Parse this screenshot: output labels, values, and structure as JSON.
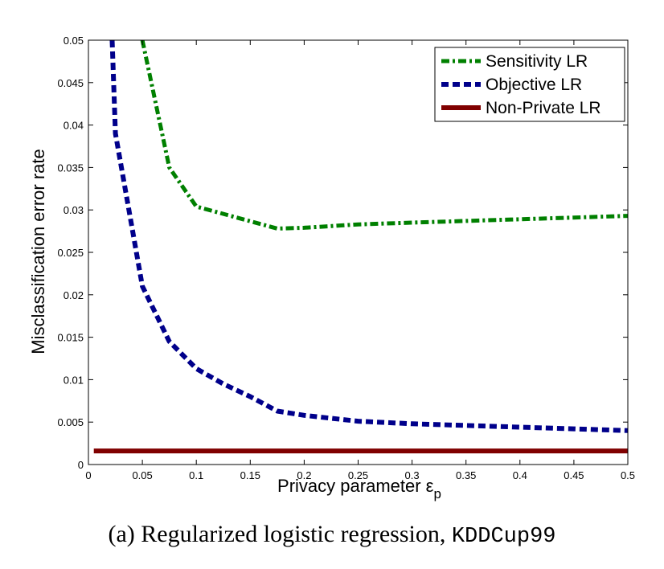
{
  "chart_data": {
    "type": "line",
    "xlabel": "Privacy parameter ε",
    "xlabel_subscript": "p",
    "ylabel": "Misclassification error rate",
    "xlim": [
      0,
      0.5
    ],
    "ylim": [
      0,
      0.05
    ],
    "x_ticks": [
      "0",
      "0.05",
      "0.1",
      "0.15",
      "0.2",
      "0.25",
      "0.3",
      "0.35",
      "0.4",
      "0.45",
      "0.5"
    ],
    "y_ticks": [
      "0",
      "0.005",
      "0.01",
      "0.015",
      "0.02",
      "0.025",
      "0.03",
      "0.035",
      "0.04",
      "0.045",
      "0.05"
    ],
    "grid": false,
    "legend_position": "top-right",
    "series": [
      {
        "name": "Sensitivity LR",
        "color": "#008000",
        "style": "dash-dot",
        "x": [
          0.05,
          0.075,
          0.1,
          0.175,
          0.2,
          0.25,
          0.3,
          0.35,
          0.4,
          0.45,
          0.5
        ],
        "y": [
          0.05,
          0.035,
          0.0304,
          0.0278,
          0.0279,
          0.0283,
          0.0285,
          0.0287,
          0.0289,
          0.0291,
          0.0293
        ]
      },
      {
        "name": "Objective LR",
        "color": "#00008b",
        "style": "dashed",
        "x": [
          0.022,
          0.025,
          0.05,
          0.075,
          0.1,
          0.125,
          0.15,
          0.175,
          0.2,
          0.25,
          0.3,
          0.35,
          0.4,
          0.45,
          0.5
        ],
        "y": [
          0.05,
          0.039,
          0.021,
          0.0145,
          0.0113,
          0.0095,
          0.008,
          0.0063,
          0.0058,
          0.0051,
          0.0048,
          0.0046,
          0.0044,
          0.0042,
          0.004
        ]
      },
      {
        "name": "Non-Private LR",
        "color": "#800000",
        "style": "solid",
        "x": [
          0.005,
          0.5
        ],
        "y": [
          0.0016,
          0.0016
        ]
      }
    ]
  },
  "caption": {
    "prefix": "(a)  Regularized logistic regression, ",
    "dataset": "KDDCup99"
  }
}
